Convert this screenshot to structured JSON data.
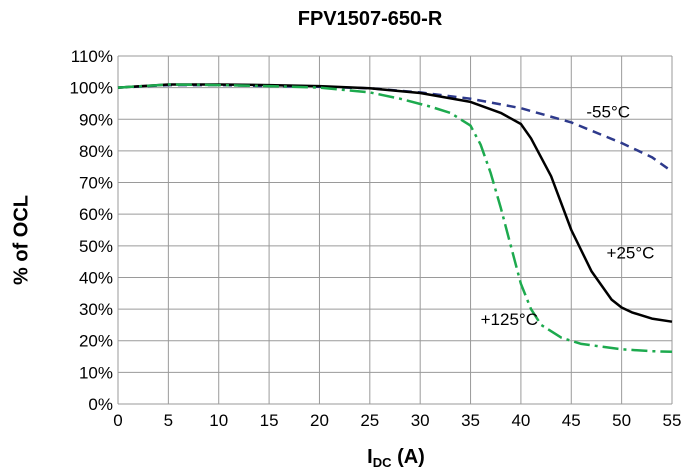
{
  "chart_data": {
    "type": "line",
    "title": "FPV1507-650-R",
    "ylabel": "% of OCL",
    "xlabel_main": "I",
    "xlabel_sub": "DC",
    "xlabel_unit": " (A)",
    "xlim": [
      0,
      55
    ],
    "ylim": [
      0,
      110
    ],
    "xticks": [
      0,
      5,
      10,
      15,
      20,
      25,
      30,
      35,
      40,
      45,
      50,
      55
    ],
    "yticks": [
      0,
      10,
      20,
      30,
      40,
      50,
      60,
      70,
      80,
      90,
      100,
      110
    ],
    "ytick_suffix": "%",
    "grid": true,
    "series": [
      {
        "name": "-55°C",
        "color": "#2E3A8C",
        "dash": "dashed",
        "x": [
          0,
          5,
          10,
          15,
          20,
          25,
          30,
          35,
          40,
          45,
          50,
          53,
          55
        ],
        "y": [
          100,
          100.8,
          100.8,
          100.5,
          100.3,
          99.8,
          98.5,
          96.5,
          93.5,
          89,
          82.5,
          78,
          73.5
        ]
      },
      {
        "name": "+25°C",
        "color": "#000000",
        "dash": "solid",
        "x": [
          0,
          5,
          10,
          15,
          20,
          25,
          30,
          35,
          38,
          40,
          41,
          43,
          45,
          47,
          49,
          50,
          51,
          53,
          55
        ],
        "y": [
          100,
          101,
          101,
          100.8,
          100.5,
          99.8,
          98.3,
          95.5,
          92,
          88.5,
          84,
          72,
          55,
          42,
          33,
          30.5,
          29,
          27,
          26
        ]
      },
      {
        "name": "+125°C",
        "color": "#1DAA4E",
        "dash": "dashdot",
        "x": [
          0,
          5,
          10,
          15,
          20,
          25,
          28,
          31,
          33,
          35,
          36,
          37,
          38,
          39,
          40,
          41,
          42,
          44,
          46,
          50,
          53,
          55
        ],
        "y": [
          100,
          101,
          100.8,
          100.5,
          100,
          98.5,
          96.5,
          94,
          92,
          88,
          82,
          73,
          62,
          50,
          38,
          30,
          25,
          21,
          19,
          17.3,
          16.7,
          16.5
        ]
      }
    ],
    "annotations": [
      {
        "text": "-55°C",
        "x": 46.5,
        "y": 90.5
      },
      {
        "text": "+25°C",
        "x": 48.5,
        "y": 46
      },
      {
        "text": "+125°C",
        "x": 36,
        "y": 25
      }
    ]
  }
}
